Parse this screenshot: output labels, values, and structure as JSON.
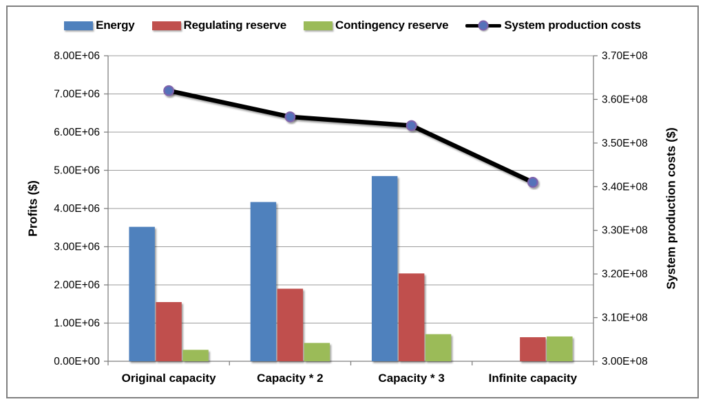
{
  "figure": {
    "background": "#ffffff",
    "border_color": "#7f7f7f",
    "text_color": "#000000",
    "gridline_color": "#9b9b9b",
    "axis_line_color": "#7f7f7f"
  },
  "legend": {
    "position": "top",
    "items": [
      {
        "label": "Energy",
        "type": "bar",
        "color": "#4F81BD"
      },
      {
        "label": "Regulating reserve",
        "type": "bar",
        "color": "#C0504D"
      },
      {
        "label": "Contingency reserve",
        "type": "bar",
        "color": "#9BBB59"
      },
      {
        "label": "System production costs",
        "type": "line",
        "color": "#000000",
        "marker_fill": "#5572B9",
        "marker_edge": "#7E62AC"
      }
    ]
  },
  "chart_data": {
    "type": "bar",
    "subtype": "grouped bars with overlaid line (dual axis combo)",
    "categories": [
      "Original capacity",
      "Capacity * 2",
      "Capacity * 3",
      "Infinite capacity"
    ],
    "series": [
      {
        "name": "Energy",
        "type": "bar",
        "axis": "left",
        "color": "#4F81BD",
        "values": [
          3520000,
          4170000,
          4850000,
          0
        ]
      },
      {
        "name": "Regulating reserve",
        "type": "bar",
        "axis": "left",
        "color": "#C0504D",
        "values": [
          1550000,
          1900000,
          2300000,
          630000
        ]
      },
      {
        "name": "Contingency reserve",
        "type": "bar",
        "axis": "left",
        "color": "#9BBB59",
        "values": [
          300000,
          480000,
          710000,
          650000
        ]
      },
      {
        "name": "System production costs",
        "type": "line",
        "axis": "right",
        "color": "#000000",
        "marker_fill": "#5572B9",
        "marker_edge": "#7E62AC",
        "values": [
          362000000,
          356000000,
          354000000,
          341000000
        ]
      }
    ],
    "left_axis": {
      "title": "Profits ($)",
      "min": 0,
      "max": 8000000,
      "step": 1000000,
      "tick_labels": [
        "0.00E+00",
        "1.00E+06",
        "2.00E+06",
        "3.00E+06",
        "4.00E+06",
        "5.00E+06",
        "6.00E+06",
        "7.00E+06",
        "8.00E+06"
      ]
    },
    "right_axis": {
      "title": "System production costs ($)",
      "min": 300000000,
      "max": 370000000,
      "step": 10000000,
      "tick_labels": [
        "3.00E+08",
        "3.10E+08",
        "3.20E+08",
        "3.30E+08",
        "3.40E+08",
        "3.50E+08",
        "3.60E+08",
        "3.70E+08"
      ]
    },
    "grid": true,
    "legend_position": "top"
  }
}
